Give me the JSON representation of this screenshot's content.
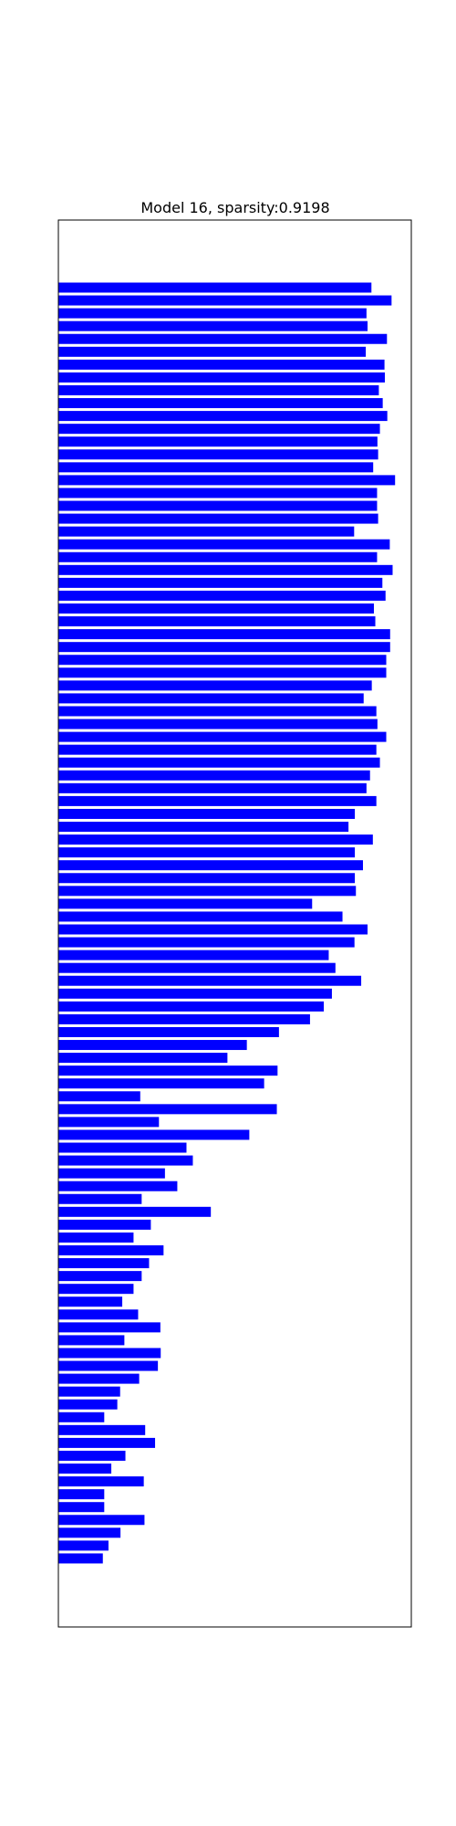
{
  "chart_data": {
    "type": "bar",
    "orientation": "horizontal",
    "title": "Model 16, sparsity:0.9198",
    "xlabel": "",
    "ylabel": "",
    "xlim": [
      0,
      1
    ],
    "grid": false,
    "bar_color": "#0000ff",
    "axis_color": "#000000",
    "background": "#ffffff",
    "values": [
      0.887,
      0.944,
      0.873,
      0.876,
      0.931,
      0.871,
      0.924,
      0.925,
      0.908,
      0.919,
      0.932,
      0.911,
      0.904,
      0.906,
      0.892,
      0.954,
      0.903,
      0.903,
      0.906,
      0.838,
      0.939,
      0.903,
      0.947,
      0.918,
      0.927,
      0.894,
      0.898,
      0.94,
      0.94,
      0.929,
      0.929,
      0.888,
      0.865,
      0.901,
      0.904,
      0.929,
      0.901,
      0.911,
      0.883,
      0.873,
      0.901,
      0.84,
      0.822,
      0.891,
      0.84,
      0.863,
      0.84,
      0.843,
      0.719,
      0.805,
      0.876,
      0.839,
      0.766,
      0.785,
      0.858,
      0.775,
      0.752,
      0.713,
      0.625,
      0.534,
      0.479,
      0.621,
      0.583,
      0.232,
      0.619,
      0.285,
      0.541,
      0.363,
      0.381,
      0.302,
      0.337,
      0.236,
      0.432,
      0.262,
      0.213,
      0.298,
      0.257,
      0.236,
      0.213,
      0.181,
      0.226,
      0.289,
      0.187,
      0.29,
      0.282,
      0.229,
      0.175,
      0.167,
      0.13,
      0.246,
      0.274,
      0.19,
      0.15,
      0.242,
      0.13,
      0.13,
      0.244,
      0.176,
      0.142,
      0.126
    ]
  }
}
